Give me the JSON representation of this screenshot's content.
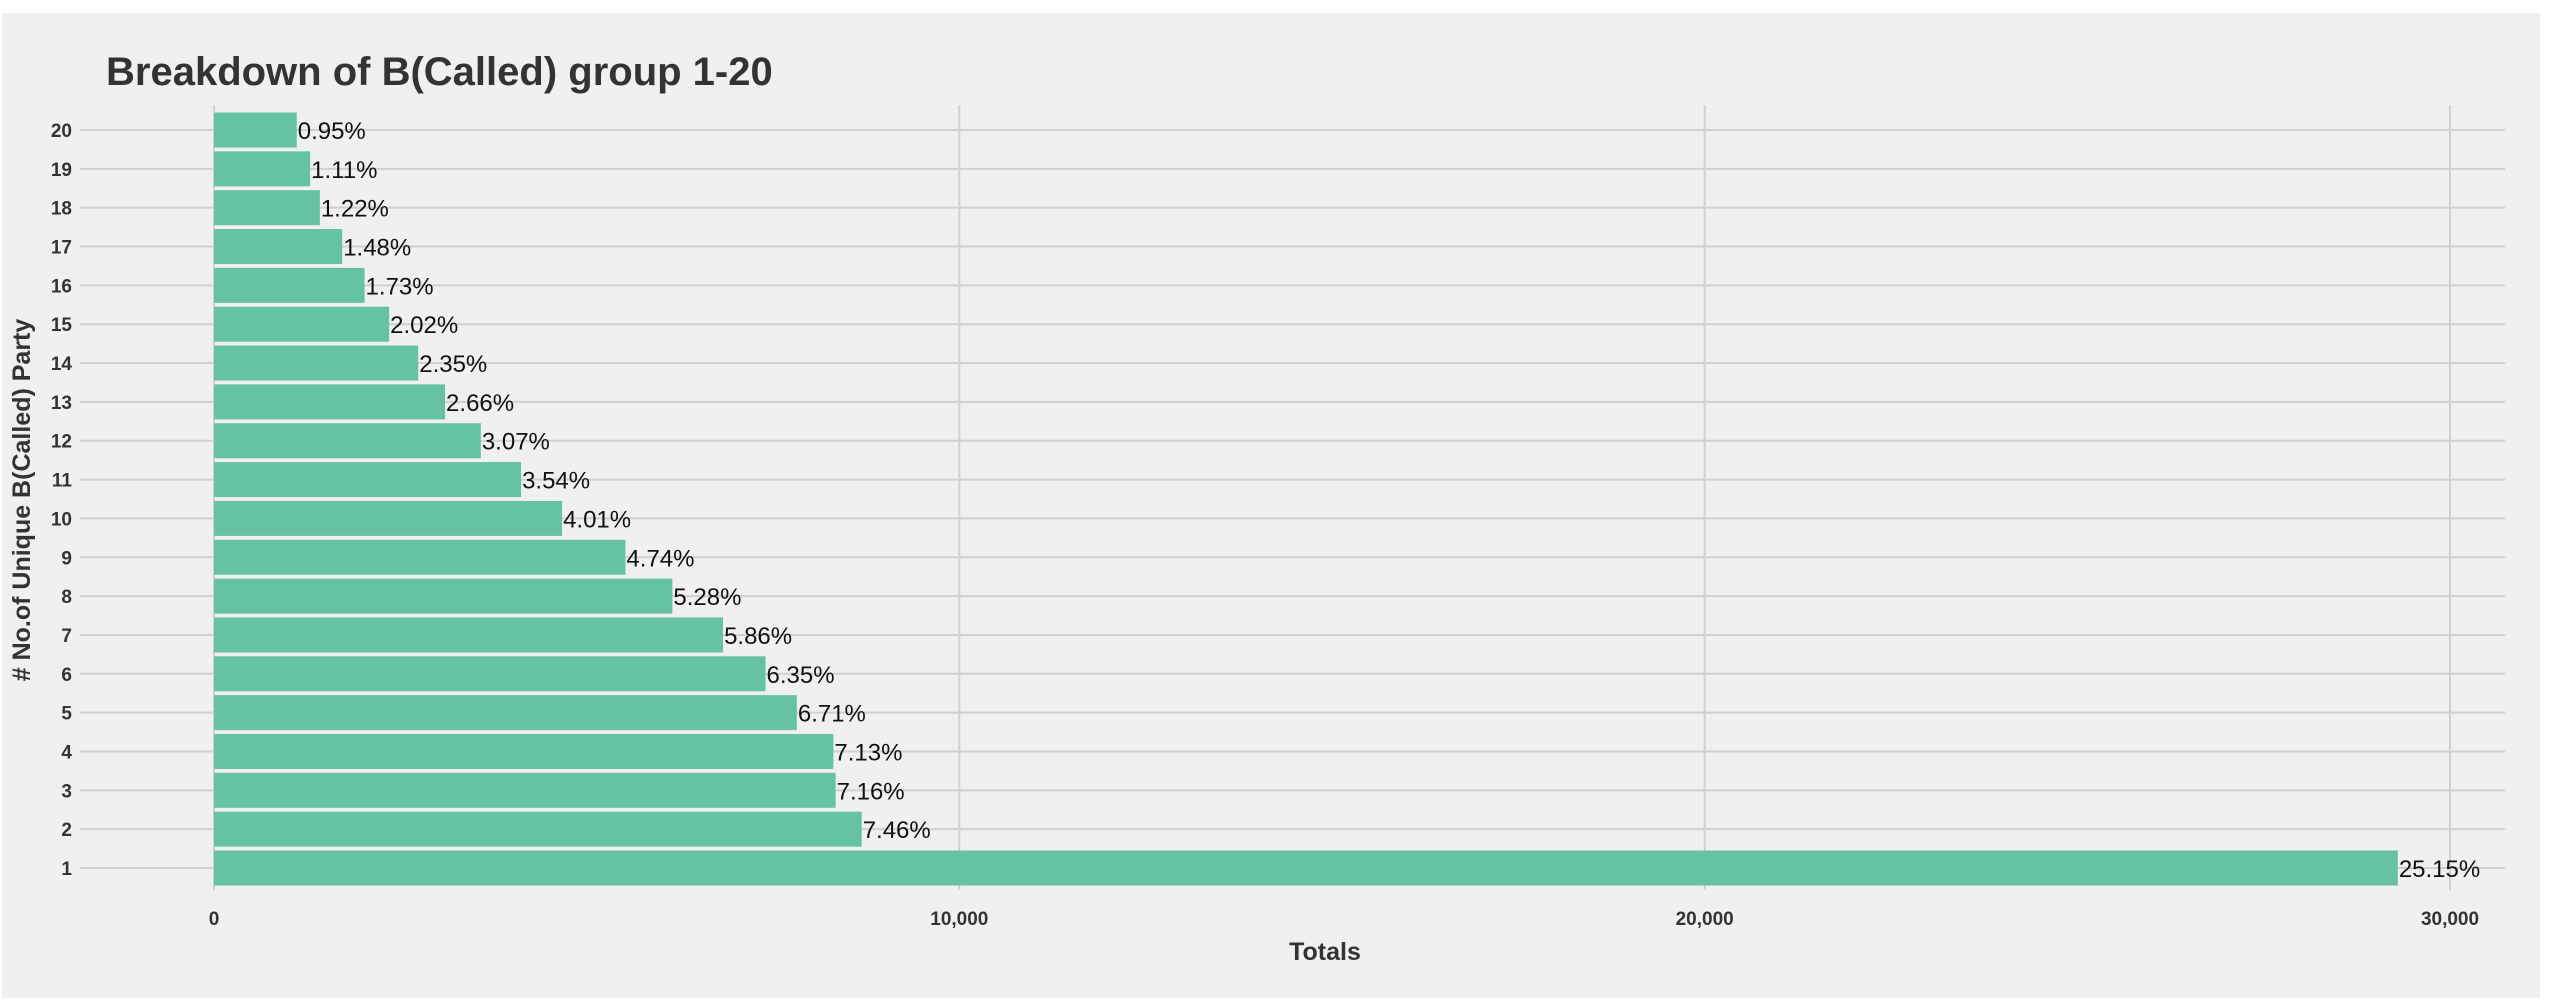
{
  "chart_data": {
    "type": "bar",
    "orientation": "horizontal",
    "title": "Breakdown of B(Called) group 1-20",
    "xlabel": "Totals",
    "ylabel": "# No.of Unique B(Called) Party",
    "categories": [
      "1",
      "2",
      "3",
      "4",
      "5",
      "6",
      "7",
      "8",
      "9",
      "10",
      "11",
      "12",
      "13",
      "14",
      "15",
      "16",
      "17",
      "18",
      "19",
      "20"
    ],
    "values": [
      29300,
      8690,
      8340,
      8310,
      7820,
      7400,
      6830,
      6150,
      5520,
      4670,
      4120,
      3580,
      3100,
      2740,
      2350,
      2020,
      1720,
      1420,
      1290,
      1110
    ],
    "data_labels": [
      "25.15%",
      "7.46%",
      "7.16%",
      "7.13%",
      "6.71%",
      "6.35%",
      "5.86%",
      "5.28%",
      "4.74%",
      "4.01%",
      "3.54%",
      "3.07%",
      "2.66%",
      "2.35%",
      "2.02%",
      "1.73%",
      "1.48%",
      "1.22%",
      "1.11%",
      "0.95%"
    ],
    "xticks": [
      0,
      10000,
      20000,
      30000
    ],
    "xtick_labels": [
      "0",
      "10,000",
      "20,000",
      "30,000"
    ],
    "xlim": [
      0,
      30500
    ],
    "grid": true,
    "legend": "none",
    "colors": {
      "bar": "#66c2a5",
      "background": "#f0f0f0",
      "grid": "#d0d0d0",
      "text": "#333333"
    }
  }
}
